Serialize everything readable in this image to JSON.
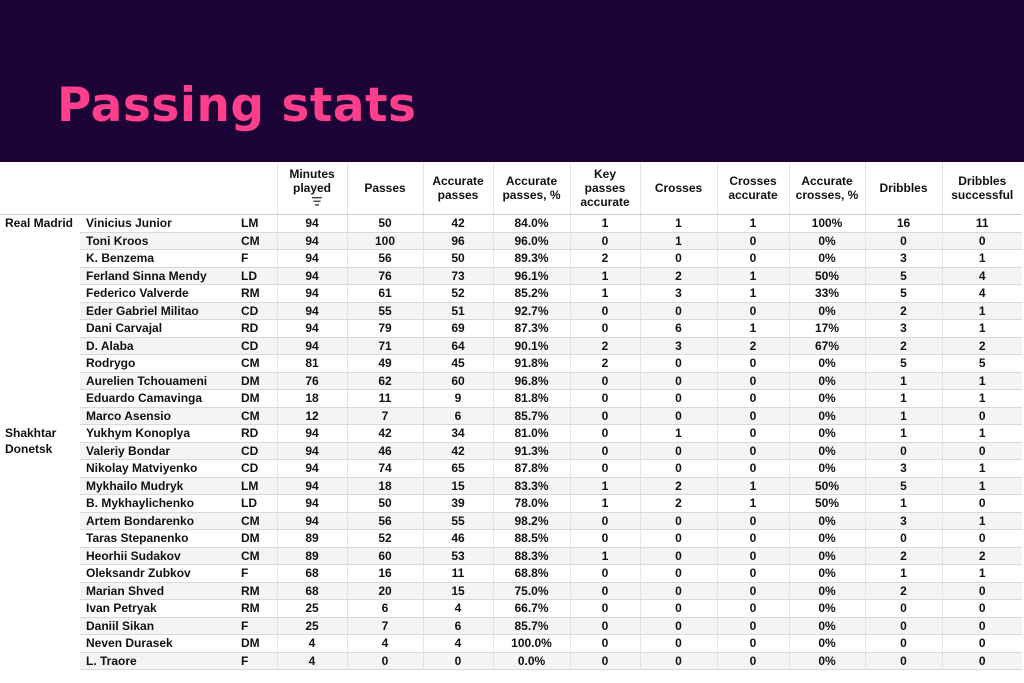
{
  "title": "Passing stats",
  "columns": [
    "Minutes played",
    "Passes",
    "Accurate passes",
    "Accurate passes, %",
    "Key passes accurate",
    "Crosses",
    "Crosses accurate",
    "Accurate crosses, %",
    "Dribbles",
    "Dribbles successful"
  ],
  "columns_display": {
    "minutes": [
      "Minutes",
      "played"
    ],
    "passes": [
      "Passes"
    ],
    "acc_passes": [
      "Accurate",
      "passes"
    ],
    "acc_passes_pct": [
      "Accurate",
      "passes, %"
    ],
    "key_passes": [
      "Key",
      "passes",
      "accurate"
    ],
    "crosses": [
      "Crosses"
    ],
    "crosses_acc": [
      "Crosses",
      "accurate"
    ],
    "acc_crosses_pct": [
      "Accurate",
      "crosses, %"
    ],
    "dribbles": [
      "Dribbles"
    ],
    "dribbles_succ": [
      "Dribbles",
      "successful"
    ]
  },
  "icons": {
    "sort": "sort-icon"
  },
  "colors": {
    "header_bg": "#1c0536",
    "title": "#ff3e8c"
  },
  "teams": [
    {
      "name": "Real Madrid",
      "players": [
        [
          "Vinicius Junior",
          "LM",
          "94",
          "50",
          "42",
          "84.0%",
          "1",
          "1",
          "1",
          "100%",
          "16",
          "11"
        ],
        [
          "Toni Kroos",
          "CM",
          "94",
          "100",
          "96",
          "96.0%",
          "0",
          "1",
          "0",
          "0%",
          "0",
          "0"
        ],
        [
          "K. Benzema",
          "F",
          "94",
          "56",
          "50",
          "89.3%",
          "2",
          "0",
          "0",
          "0%",
          "3",
          "1"
        ],
        [
          "Ferland Sinna Mendy",
          "LD",
          "94",
          "76",
          "73",
          "96.1%",
          "1",
          "2",
          "1",
          "50%",
          "5",
          "4"
        ],
        [
          "Federico Valverde",
          "RM",
          "94",
          "61",
          "52",
          "85.2%",
          "1",
          "3",
          "1",
          "33%",
          "5",
          "4"
        ],
        [
          "Eder Gabriel Militao",
          "CD",
          "94",
          "55",
          "51",
          "92.7%",
          "0",
          "0",
          "0",
          "0%",
          "2",
          "1"
        ],
        [
          "Dani Carvajal",
          "RD",
          "94",
          "79",
          "69",
          "87.3%",
          "0",
          "6",
          "1",
          "17%",
          "3",
          "1"
        ],
        [
          "D. Alaba",
          "CD",
          "94",
          "71",
          "64",
          "90.1%",
          "2",
          "3",
          "2",
          "67%",
          "2",
          "2"
        ],
        [
          "Rodrygo",
          "CM",
          "81",
          "49",
          "45",
          "91.8%",
          "2",
          "0",
          "0",
          "0%",
          "5",
          "5"
        ],
        [
          "Aurelien Tchouameni",
          "DM",
          "76",
          "62",
          "60",
          "96.8%",
          "0",
          "0",
          "0",
          "0%",
          "1",
          "1"
        ],
        [
          "Eduardo Camavinga",
          "DM",
          "18",
          "11",
          "9",
          "81.8%",
          "0",
          "0",
          "0",
          "0%",
          "1",
          "1"
        ],
        [
          "Marco Asensio",
          "CM",
          "12",
          "7",
          "6",
          "85.7%",
          "0",
          "0",
          "0",
          "0%",
          "1",
          "0"
        ]
      ]
    },
    {
      "name": "Shakhtar Donetsk",
      "players": [
        [
          "Yukhym Konoplya",
          "RD",
          "94",
          "42",
          "34",
          "81.0%",
          "0",
          "1",
          "0",
          "0%",
          "1",
          "1"
        ],
        [
          "Valeriy Bondar",
          "CD",
          "94",
          "46",
          "42",
          "91.3%",
          "0",
          "0",
          "0",
          "0%",
          "0",
          "0"
        ],
        [
          "Nikolay Matviyenko",
          "CD",
          "94",
          "74",
          "65",
          "87.8%",
          "0",
          "0",
          "0",
          "0%",
          "3",
          "1"
        ],
        [
          "Mykhailo Mudryk",
          "LM",
          "94",
          "18",
          "15",
          "83.3%",
          "1",
          "2",
          "1",
          "50%",
          "5",
          "1"
        ],
        [
          "B. Mykhaylichenko",
          "LD",
          "94",
          "50",
          "39",
          "78.0%",
          "1",
          "2",
          "1",
          "50%",
          "1",
          "0"
        ],
        [
          "Artem Bondarenko",
          "CM",
          "94",
          "56",
          "55",
          "98.2%",
          "0",
          "0",
          "0",
          "0%",
          "3",
          "1"
        ],
        [
          "Taras Stepanenko",
          "DM",
          "89",
          "52",
          "46",
          "88.5%",
          "0",
          "0",
          "0",
          "0%",
          "0",
          "0"
        ],
        [
          "Heorhii Sudakov",
          "CM",
          "89",
          "60",
          "53",
          "88.3%",
          "1",
          "0",
          "0",
          "0%",
          "2",
          "2"
        ],
        [
          "Oleksandr Zubkov",
          "F",
          "68",
          "16",
          "11",
          "68.8%",
          "0",
          "0",
          "0",
          "0%",
          "1",
          "1"
        ],
        [
          "Marian Shved",
          "RM",
          "68",
          "20",
          "15",
          "75.0%",
          "0",
          "0",
          "0",
          "0%",
          "2",
          "0"
        ],
        [
          "Ivan Petryak",
          "RM",
          "25",
          "6",
          "4",
          "66.7%",
          "0",
          "0",
          "0",
          "0%",
          "0",
          "0"
        ],
        [
          "Daniil Sikan",
          "F",
          "25",
          "7",
          "6",
          "85.7%",
          "0",
          "0",
          "0",
          "0%",
          "0",
          "0"
        ],
        [
          "Neven Durasek",
          "DM",
          "4",
          "4",
          "4",
          "100.0%",
          "0",
          "0",
          "0",
          "0%",
          "0",
          "0"
        ],
        [
          "L. Traore",
          "F",
          "4",
          "0",
          "0",
          "0.0%",
          "0",
          "0",
          "0",
          "0%",
          "0",
          "0"
        ]
      ]
    }
  ]
}
